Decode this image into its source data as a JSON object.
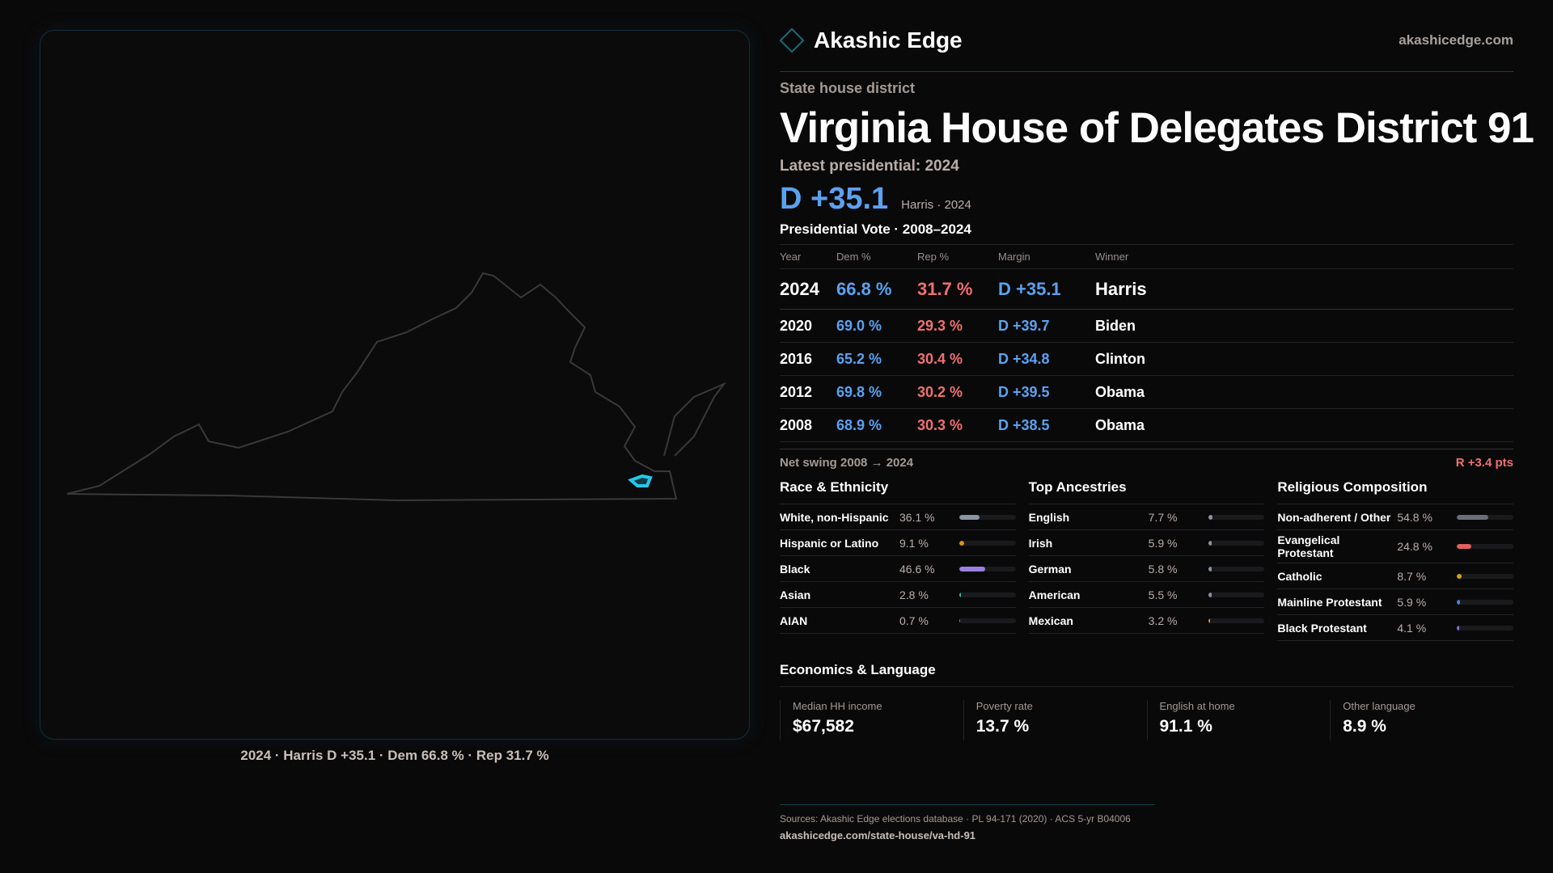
{
  "brand": {
    "name": "Akashic Edge",
    "url": "akashicedge.com"
  },
  "header": {
    "kind": "State house district",
    "title": "Virginia House of Delegates District 91",
    "latest": "Latest presidential: 2024",
    "margin": "D +35.1",
    "margin_sub": "Harris · 2024"
  },
  "table": {
    "title": "Presidential Vote · 2008–2024",
    "headers": [
      "Year",
      "Dem %",
      "Rep %",
      "Margin",
      "Winner"
    ],
    "rows": [
      [
        "2024",
        "66.8 %",
        "31.7 %",
        "D +35.1",
        "Harris"
      ],
      [
        "2020",
        "69.0 %",
        "29.3 %",
        "D +39.7",
        "Biden"
      ],
      [
        "2016",
        "65.2 %",
        "30.4 %",
        "D +34.8",
        "Clinton"
      ],
      [
        "2012",
        "69.8 %",
        "30.2 %",
        "D +39.5",
        "Obama"
      ],
      [
        "2008",
        "68.9 %",
        "30.3 %",
        "D +38.5",
        "Obama"
      ]
    ]
  },
  "swing": {
    "label": "Net swing 2008 → 2024",
    "value": "R +3.4 pts"
  },
  "race": {
    "title": "Race & Ethnicity",
    "items": [
      {
        "label": "White, non-Hispanic",
        "pct": "36.1 %",
        "value": 36.1,
        "color": "#8a94a3"
      },
      {
        "label": "Hispanic or Latino",
        "pct": "9.1 %",
        "value": 9.1,
        "color": "#d9960f"
      },
      {
        "label": "Black",
        "pct": "46.6 %",
        "value": 46.6,
        "color": "#9a7fe0"
      },
      {
        "label": "Asian",
        "pct": "2.8 %",
        "value": 2.8,
        "color": "#2fc4a0"
      },
      {
        "label": "AIAN",
        "pct": "0.7 %",
        "value": 0.7,
        "color": "#888"
      }
    ]
  },
  "ancestry": {
    "title": "Top Ancestries",
    "items": [
      {
        "label": "English",
        "pct": "7.7 %",
        "value": 7.7,
        "color": "#8a94a3"
      },
      {
        "label": "Irish",
        "pct": "5.9 %",
        "value": 5.9,
        "color": "#8a94a3"
      },
      {
        "label": "German",
        "pct": "5.8 %",
        "value": 5.8,
        "color": "#8a94a3"
      },
      {
        "label": "American",
        "pct": "5.5 %",
        "value": 5.5,
        "color": "#8a94a3"
      },
      {
        "label": "Mexican",
        "pct": "3.2 %",
        "value": 3.2,
        "color": "#d9960f"
      }
    ]
  },
  "religion": {
    "title": "Religious Composition",
    "items": [
      {
        "label": "Non-adherent / Other",
        "pct": "54.8 %",
        "value": 54.8,
        "color": "#6a6e78"
      },
      {
        "label": "Evangelical Protestant",
        "pct": "24.8 %",
        "value": 24.8,
        "color": "#e06060"
      },
      {
        "label": "Catholic",
        "pct": "8.7 %",
        "value": 8.7,
        "color": "#d9a010"
      },
      {
        "label": "Mainline Protestant",
        "pct": "5.9 %",
        "value": 5.9,
        "color": "#4a80d0"
      },
      {
        "label": "Black Protestant",
        "pct": "4.1 %",
        "value": 4.1,
        "color": "#8a70d0"
      }
    ]
  },
  "econ": {
    "title": "Economics & Language",
    "stats": [
      {
        "label": "Median HH income",
        "value": "$67,582"
      },
      {
        "label": "Poverty rate",
        "value": "13.7 %"
      },
      {
        "label": "English at home",
        "value": "91.1 %"
      },
      {
        "label": "Other language",
        "value": "8.9 %"
      }
    ]
  },
  "map": {
    "caption": "2024 · Harris D +35.1 · Dem 66.8 % · Rep 31.7 %",
    "highlight": "#22c8e8"
  },
  "footer": {
    "sources": "Sources: Akashic Edge elections database · PL 94-171 (2020) · ACS 5-yr B04006",
    "url": "akashicedge.com/state-house/va-hd-91"
  }
}
